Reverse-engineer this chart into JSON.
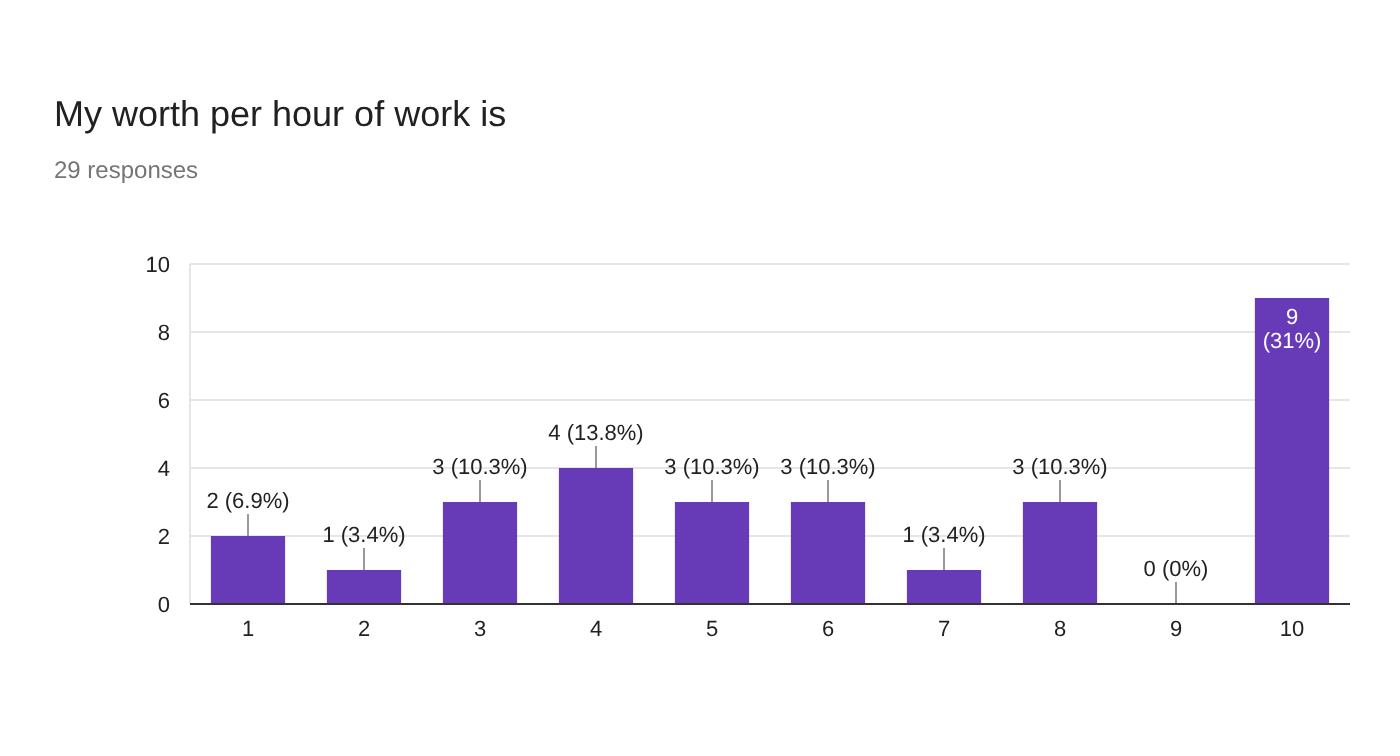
{
  "chart_data": {
    "type": "bar",
    "title": "My worth per hour of work is",
    "subtitle": "29 responses",
    "categories": [
      "1",
      "2",
      "3",
      "4",
      "5",
      "6",
      "7",
      "8",
      "9",
      "10"
    ],
    "values": [
      2,
      1,
      3,
      4,
      3,
      3,
      1,
      3,
      0,
      9
    ],
    "value_labels": [
      "2 (6.9%)",
      "1 (3.4%)",
      "3 (10.3%)",
      "4 (13.8%)",
      "3 (10.3%)",
      "3 (10.3%)",
      "1 (3.4%)",
      "3 (10.3%)",
      "0 (0%)",
      "9 (31%)"
    ],
    "color": "#673ab7",
    "ylim": [
      0,
      10
    ],
    "yticks": [
      0,
      2,
      4,
      6,
      8,
      10
    ],
    "grid": true
  }
}
